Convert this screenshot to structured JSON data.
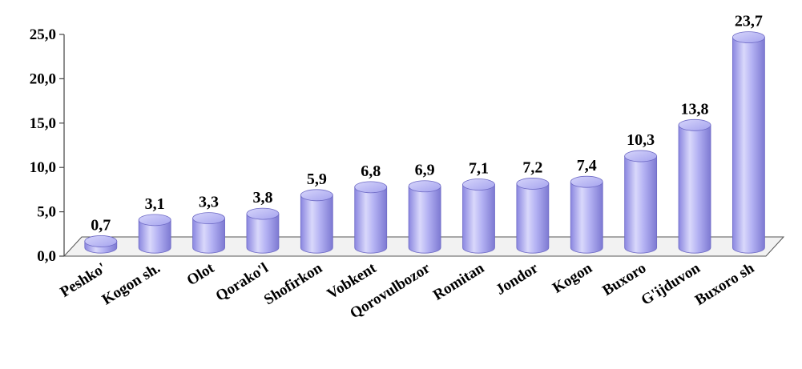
{
  "chart_data": {
    "type": "bar",
    "title": "",
    "xlabel": "",
    "ylabel": "",
    "ylim": [
      0,
      25
    ],
    "y_ticks": [
      "0,0",
      "5,0",
      "10,0",
      "15,0",
      "20,0",
      "25,0"
    ],
    "y_tick_values": [
      0,
      5,
      10,
      15,
      20,
      25
    ],
    "grid": false,
    "legend": "none",
    "style": "3d-cylinder",
    "bar_color": "#a9a7f0",
    "categories": [
      "Peshko'",
      "Kogon sh.",
      "Olot",
      "Qorako'l",
      "Shofirkon",
      "Vobkent",
      "Qorovulbozor",
      "Romitan",
      "Jondor",
      "Kogon",
      "Buxoro",
      "G'ijduvon",
      "Buxoro sh"
    ],
    "values": [
      0.7,
      3.1,
      3.3,
      3.8,
      5.9,
      6.8,
      6.9,
      7.1,
      7.2,
      7.4,
      10.3,
      13.8,
      23.7
    ],
    "value_labels": [
      "0,7",
      "3,1",
      "3,3",
      "3,8",
      "5,9",
      "6,8",
      "6,9",
      "7,1",
      "7,2",
      "7,4",
      "10,3",
      "13,8",
      "23,7"
    ]
  }
}
